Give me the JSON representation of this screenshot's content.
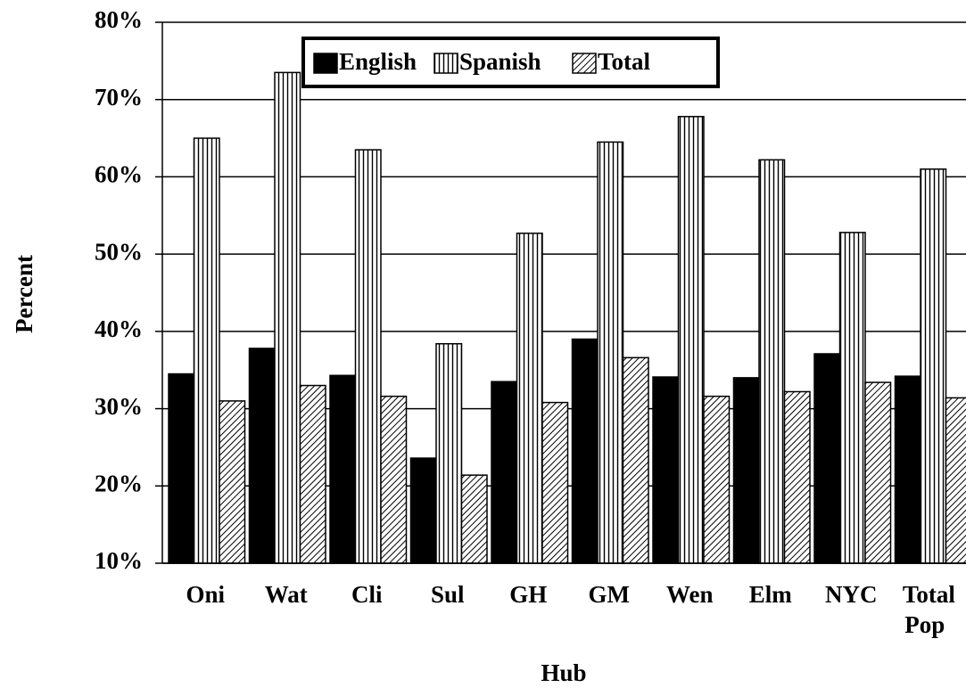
{
  "chart_data": {
    "type": "bar",
    "categories": [
      "Oni",
      "Wat",
      "Cli",
      "Sul",
      "GH",
      "GM",
      "Wen",
      "Elm",
      "NYC",
      "Total Pop"
    ],
    "series": [
      {
        "name": "English",
        "color": "#000000",
        "pattern": "solid",
        "values": [
          34.5,
          37.8,
          34.3,
          23.6,
          33.5,
          39,
          34.1,
          34,
          37.1,
          34.2
        ]
      },
      {
        "name": "Spanish",
        "color": "#000000",
        "pattern": "vertical",
        "values": [
          65,
          73.5,
          63.5,
          38.4,
          52.7,
          64.5,
          67.8,
          62.2,
          52.8,
          61
        ]
      },
      {
        "name": "Total",
        "color": "#000000",
        "pattern": "diagonal",
        "values": [
          31,
          33,
          31.6,
          21.4,
          30.8,
          36.6,
          31.6,
          32.2,
          33.4,
          31.4
        ]
      }
    ],
    "ylim": [
      10,
      80
    ],
    "yticks": [
      {
        "value": 10,
        "label": "10%"
      },
      {
        "value": 20,
        "label": "20%"
      },
      {
        "value": 30,
        "label": "30%"
      },
      {
        "value": 40,
        "label": "40%"
      },
      {
        "value": 50,
        "label": "50%"
      },
      {
        "value": 60,
        "label": "60%"
      },
      {
        "value": 70,
        "label": "70%"
      },
      {
        "value": 80,
        "label": "80%"
      }
    ],
    "grid": true,
    "legend": "top",
    "y_label": "Percent",
    "x_label": "Hub"
  }
}
